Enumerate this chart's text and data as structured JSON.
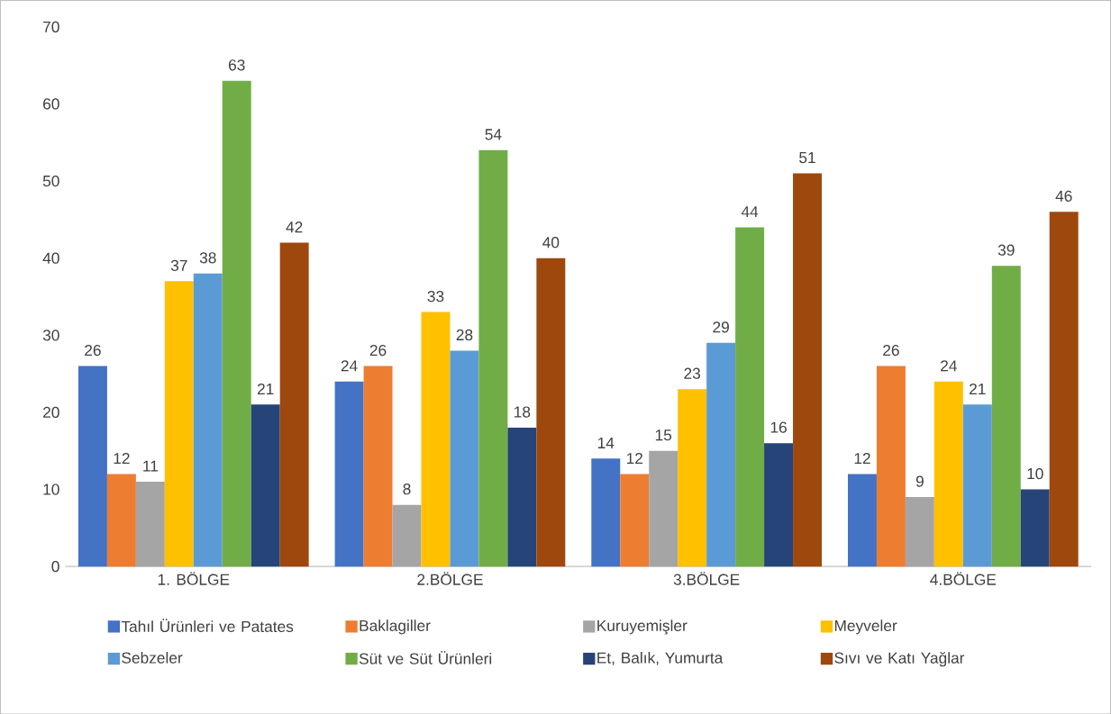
{
  "chart_data": {
    "type": "bar",
    "categories": [
      "1. BÖLGE",
      "2.BÖLGE",
      "3.BÖLGE",
      "4.BÖLGE"
    ],
    "series": [
      {
        "name": "Tahıl Ürünleri ve Patates",
        "color": "#4472c4",
        "values": [
          26,
          24,
          14,
          12
        ]
      },
      {
        "name": "Baklagiller",
        "color": "#ed7d31",
        "values": [
          12,
          26,
          12,
          26
        ]
      },
      {
        "name": "Kuruyemişler",
        "color": "#a5a5a5",
        "values": [
          11,
          8,
          15,
          9
        ]
      },
      {
        "name": "Meyveler",
        "color": "#ffc000",
        "values": [
          37,
          33,
          23,
          24
        ]
      },
      {
        "name": "Sebzeler",
        "color": "#5b9bd5",
        "values": [
          38,
          28,
          29,
          21
        ]
      },
      {
        "name": "Süt ve Süt Ürünleri",
        "color": "#70ad47",
        "values": [
          63,
          54,
          44,
          39
        ]
      },
      {
        "name": "Et, Balık, Yumurta",
        "color": "#264478",
        "values": [
          21,
          18,
          16,
          10
        ]
      },
      {
        "name": "Sıvı ve Katı Yağlar",
        "color": "#9e480e",
        "values": [
          42,
          40,
          51,
          46
        ]
      }
    ],
    "ylim": [
      0,
      70
    ],
    "yticks": [
      0,
      10,
      20,
      30,
      40,
      50,
      60,
      70
    ],
    "data_labels": true,
    "legend": "bottom"
  }
}
